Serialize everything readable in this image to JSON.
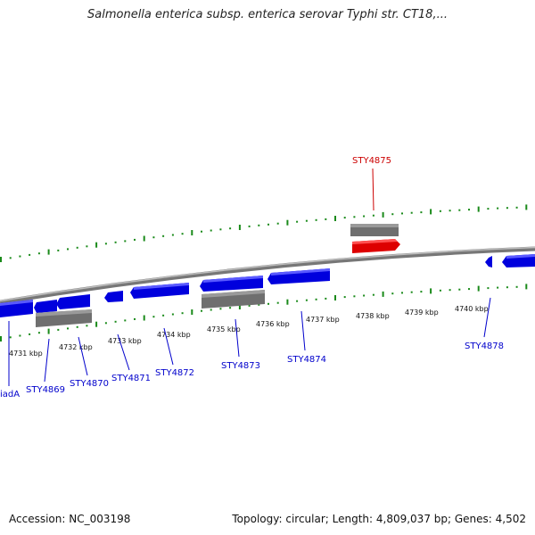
{
  "header": {
    "title": "Salmonella enterica subsp. enterica serovar Typhi str. CT18,..."
  },
  "footer": {
    "accession": "Accession: NC_003198",
    "topology": "Topology: circular; Length: 4,809,037 bp; Genes: 4,502"
  },
  "colors": {
    "forward_gene": "#0000e0",
    "highlight_gene": "#dd0000",
    "pseudo_gene": "#707070",
    "backbone": "#8a8a8a",
    "tick": "#1a8a1a",
    "label_forward": "#0000cc",
    "label_highlight": "#cc0000"
  },
  "scale": {
    "ticks": [
      {
        "label": "4731 kbp"
      },
      {
        "label": "4732 kbp"
      },
      {
        "label": "4733 kbp"
      },
      {
        "label": "4734 kbp"
      },
      {
        "label": "4735 kbp"
      },
      {
        "label": "4736 kbp"
      },
      {
        "label": "4737 kbp"
      },
      {
        "label": "4738 kbp"
      },
      {
        "label": "4739 kbp"
      },
      {
        "label": "4740 kbp"
      }
    ]
  },
  "genes": [
    {
      "label": "iadA",
      "strand": "forward"
    },
    {
      "label": "STY4869",
      "strand": "forward"
    },
    {
      "label": "STY4870",
      "strand": "forward"
    },
    {
      "label": "STY4871",
      "strand": "forward"
    },
    {
      "label": "STY4872",
      "strand": "forward"
    },
    {
      "label": "STY4873",
      "strand": "forward"
    },
    {
      "label": "STY4874",
      "strand": "forward"
    },
    {
      "label": "STY4875",
      "strand": "reverse",
      "highlighted": true
    },
    {
      "label": "STY4878",
      "strand": "forward"
    }
  ]
}
